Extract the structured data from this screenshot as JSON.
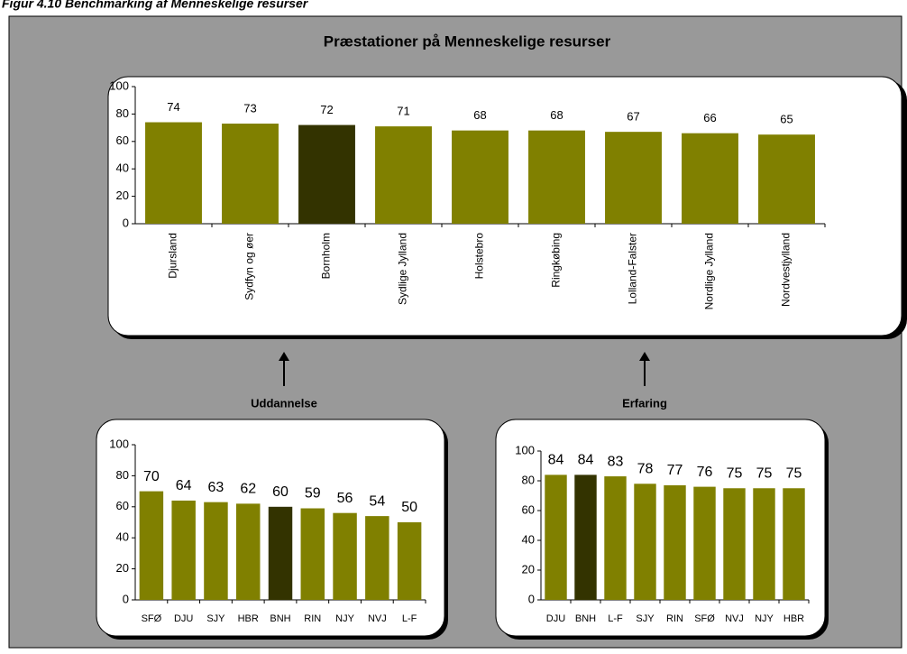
{
  "figure_title": "Figur 4.10 Benchmarking af Menneskelige resurser",
  "chart_data": [
    {
      "type": "bar",
      "title": "Præstationer på Menneskelige resurser",
      "categories": [
        "Djursland",
        "Sydfyn og øer",
        "Bornholm",
        "Sydlige Jylland",
        "Holstebro",
        "Ringkøbing",
        "Lolland-Falster",
        "Nordlige Jylland",
        "Nordvestjylland"
      ],
      "values": [
        74,
        73,
        72,
        71,
        68,
        68,
        67,
        66,
        65
      ],
      "colors": [
        "#808000",
        "#808000",
        "#333300",
        "#808000",
        "#808000",
        "#808000",
        "#808000",
        "#808000",
        "#808000"
      ],
      "ylim": [
        0,
        100
      ],
      "yticks": [
        0,
        20,
        40,
        60,
        80,
        100
      ],
      "grid": false
    },
    {
      "type": "bar",
      "title": "Uddannelse",
      "categories": [
        "SFØ",
        "DJU",
        "SJY",
        "HBR",
        "BNH",
        "RIN",
        "NJY",
        "NVJ",
        "L-F"
      ],
      "values": [
        70,
        64,
        63,
        62,
        60,
        59,
        56,
        54,
        50
      ],
      "colors": [
        "#808000",
        "#808000",
        "#808000",
        "#808000",
        "#333300",
        "#808000",
        "#808000",
        "#808000",
        "#808000"
      ],
      "ylim": [
        0,
        100
      ],
      "yticks": [
        0,
        20,
        40,
        60,
        80,
        100
      ],
      "grid": false
    },
    {
      "type": "bar",
      "title": "Erfaring",
      "categories": [
        "DJU",
        "BNH",
        "L-F",
        "SJY",
        "RIN",
        "SFØ",
        "NVJ",
        "NJY",
        "HBR"
      ],
      "values": [
        84,
        84,
        83,
        78,
        77,
        76,
        75,
        75,
        75
      ],
      "colors": [
        "#808000",
        "#333300",
        "#808000",
        "#808000",
        "#808000",
        "#808000",
        "#808000",
        "#808000",
        "#808000"
      ],
      "ylim": [
        0,
        100
      ],
      "yticks": [
        0,
        20,
        40,
        60,
        80,
        100
      ],
      "grid": false
    }
  ]
}
